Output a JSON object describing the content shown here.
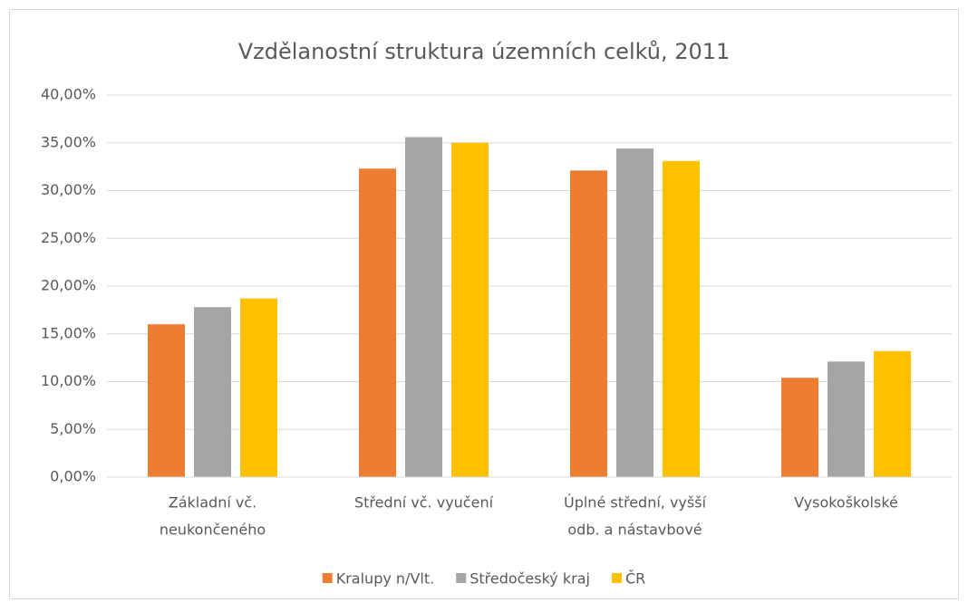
{
  "chart_data": {
    "type": "bar",
    "title": "Vzdělanostní struktura územních celků, 2011",
    "categories": [
      [
        "Základní vč.",
        "neukončeného"
      ],
      [
        "Střední vč. vyučení"
      ],
      [
        "Úplné střední, vyšší",
        "odb. a nástavbové"
      ],
      [
        "Vysokoškolské"
      ]
    ],
    "series": [
      {
        "name": "Kralupy n/Vlt.",
        "color": "#ED7D31",
        "values": [
          16.0,
          32.3,
          32.1,
          10.4
        ]
      },
      {
        "name": "Středočeský kraj",
        "color": "#A5A5A5",
        "values": [
          17.8,
          35.6,
          34.4,
          12.1
        ]
      },
      {
        "name": "ČR",
        "color": "#FFC000",
        "values": [
          18.7,
          35.0,
          33.1,
          13.2
        ]
      }
    ],
    "ylim": [
      0,
      40
    ],
    "yticks": [
      {
        "value": 0,
        "label": "0,00%"
      },
      {
        "value": 5,
        "label": "5,00%"
      },
      {
        "value": 10,
        "label": "10,00%"
      },
      {
        "value": 15,
        "label": "15,00%"
      },
      {
        "value": 20,
        "label": "20,00%"
      },
      {
        "value": 25,
        "label": "25,00%"
      },
      {
        "value": 30,
        "label": "30,00%"
      },
      {
        "value": 35,
        "label": "35,00%"
      },
      {
        "value": 40,
        "label": "40,00%"
      }
    ],
    "grid": true,
    "legend": "bottom"
  }
}
